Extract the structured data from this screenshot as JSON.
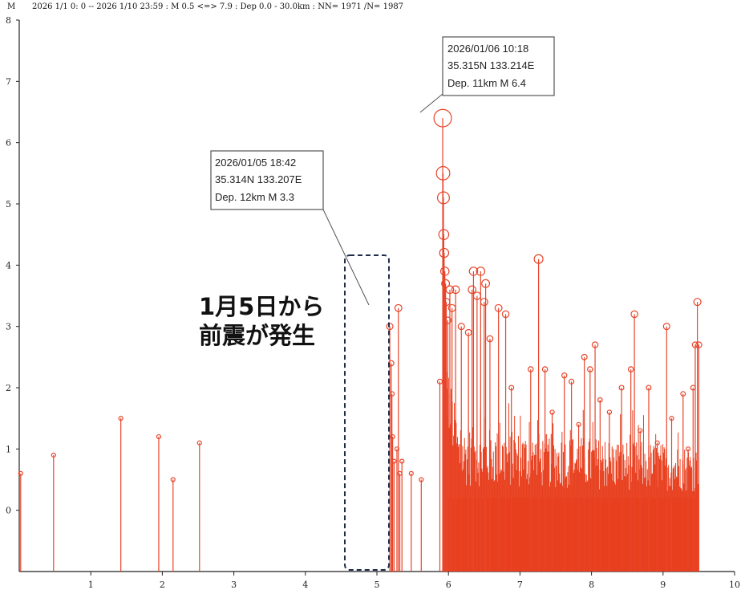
{
  "header": {
    "y_axis_letter": "M",
    "query": "2026 1/1 0: 0 -- 2026 1/10 23:59  : M 0.5 <=> 7.9   :  Dep 0.0 - 30.0km :  NN= 1971 /N= 1987"
  },
  "annotation_text": {
    "line1": "1月5日から",
    "line2": "前震が発生"
  },
  "callouts": [
    {
      "line1": "2026/01/06 10:18",
      "line2": "35.315N  133.214E",
      "line3": "Dep. 11km   M 6.4"
    },
    {
      "line1": "2026/01/05 18:42",
      "line2": "35.314N  133.207E",
      "line3": "Dep. 12km    M 3.3"
    }
  ],
  "chart_data": {
    "type": "stem",
    "xlim": [
      0,
      10
    ],
    "ylim": [
      -1,
      8
    ],
    "x_ticks": [
      "1",
      "2",
      "3",
      "4",
      "5",
      "6",
      "7",
      "8",
      "9",
      "10"
    ],
    "y_ticks": [
      "0",
      "1",
      "2",
      "3",
      "4",
      "5",
      "6",
      "7",
      "8"
    ],
    "colors": {
      "stem": "#e8452a",
      "fill": "#e8401f",
      "axis": "#222222",
      "box_border": "#555555",
      "dashed": "#1f2d4a"
    },
    "highlight_x_range": [
      5.0,
      5.55
    ],
    "dense_region": {
      "x_start": 5.92,
      "x_end": 9.5,
      "typical_max_mag": 1.3
    },
    "events": [
      [
        0.02,
        0.6
      ],
      [
        0.48,
        0.9
      ],
      [
        1.42,
        1.5
      ],
      [
        1.95,
        1.2
      ],
      [
        2.15,
        0.5
      ],
      [
        2.52,
        1.1
      ],
      [
        5.18,
        3.0
      ],
      [
        5.2,
        2.4
      ],
      [
        5.21,
        1.9
      ],
      [
        5.22,
        1.2
      ],
      [
        5.24,
        0.8
      ],
      [
        5.28,
        1.0
      ],
      [
        5.3,
        3.3
      ],
      [
        5.32,
        0.6
      ],
      [
        5.35,
        0.8
      ],
      [
        5.48,
        0.6
      ],
      [
        5.62,
        0.5
      ],
      [
        5.88,
        2.1
      ],
      [
        5.92,
        6.4
      ],
      [
        5.925,
        5.5
      ],
      [
        5.93,
        5.1
      ],
      [
        5.935,
        4.5
      ],
      [
        5.94,
        4.2
      ],
      [
        5.95,
        3.9
      ],
      [
        5.96,
        3.7
      ],
      [
        5.97,
        3.4
      ],
      [
        5.99,
        3.1
      ],
      [
        6.02,
        3.6
      ],
      [
        6.05,
        3.3
      ],
      [
        6.1,
        3.6
      ],
      [
        6.18,
        3.0
      ],
      [
        6.28,
        2.9
      ],
      [
        6.33,
        3.6
      ],
      [
        6.35,
        3.9
      ],
      [
        6.4,
        3.5
      ],
      [
        6.45,
        3.9
      ],
      [
        6.5,
        3.4
      ],
      [
        6.52,
        3.7
      ],
      [
        6.58,
        2.8
      ],
      [
        6.7,
        3.3
      ],
      [
        6.8,
        3.2
      ],
      [
        6.88,
        2.0
      ],
      [
        7.15,
        2.3
      ],
      [
        7.26,
        4.1
      ],
      [
        7.35,
        2.3
      ],
      [
        7.45,
        1.6
      ],
      [
        7.62,
        2.2
      ],
      [
        7.72,
        2.1
      ],
      [
        7.82,
        1.4
      ],
      [
        7.9,
        2.5
      ],
      [
        7.98,
        2.3
      ],
      [
        8.05,
        2.7
      ],
      [
        8.12,
        1.8
      ],
      [
        8.25,
        1.6
      ],
      [
        8.42,
        2.0
      ],
      [
        8.55,
        2.3
      ],
      [
        8.6,
        3.2
      ],
      [
        8.68,
        1.3
      ],
      [
        8.8,
        2.0
      ],
      [
        8.92,
        1.1
      ],
      [
        9.05,
        3.0
      ],
      [
        9.12,
        1.5
      ],
      [
        9.28,
        1.9
      ],
      [
        9.35,
        1.0
      ],
      [
        9.42,
        2.0
      ],
      [
        9.45,
        2.7
      ],
      [
        9.48,
        3.4
      ],
      [
        9.5,
        2.7
      ]
    ]
  }
}
